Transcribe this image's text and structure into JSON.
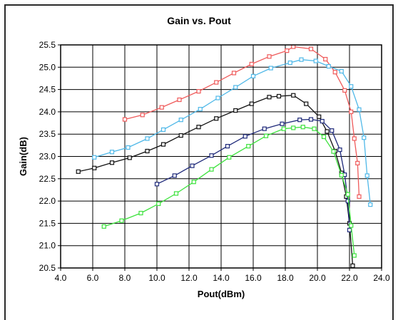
{
  "chart_data": {
    "type": "line",
    "title": "Gain vs. Pout",
    "xlabel": "Pout(dBm)",
    "ylabel": "Gain(dB)",
    "xlim": [
      4.0,
      24.0
    ],
    "ylim": [
      20.5,
      25.5
    ],
    "x_ticks": [
      "4.0",
      "6.0",
      "8.0",
      "10.0",
      "12.0",
      "14.0",
      "16.0",
      "18.0",
      "20.0",
      "22.0",
      "24.0"
    ],
    "y_ticks": [
      "20.5",
      "21.0",
      "21.5",
      "22.0",
      "22.5",
      "23.0",
      "23.5",
      "24.0",
      "24.5",
      "25.0",
      "25.5"
    ],
    "grid": true,
    "marker": "square",
    "series": [
      {
        "color": "#ef5b5b",
        "points": [
          [
            8.0,
            23.83
          ],
          [
            9.1,
            23.93
          ],
          [
            10.3,
            24.1
          ],
          [
            11.4,
            24.27
          ],
          [
            12.6,
            24.46
          ],
          [
            13.7,
            24.66
          ],
          [
            14.8,
            24.87
          ],
          [
            15.9,
            25.07
          ],
          [
            17.0,
            25.24
          ],
          [
            18.1,
            25.37
          ],
          [
            18.5,
            25.46
          ],
          [
            19.6,
            25.41
          ],
          [
            20.5,
            25.18
          ],
          [
            21.1,
            24.89
          ],
          [
            21.7,
            24.48
          ],
          [
            22.1,
            24.0
          ],
          [
            22.3,
            23.4
          ],
          [
            22.5,
            22.85
          ],
          [
            22.6,
            22.1
          ]
        ]
      },
      {
        "color": "#4fb8e8",
        "points": [
          [
            6.1,
            22.98
          ],
          [
            7.2,
            23.1
          ],
          [
            8.2,
            23.2
          ],
          [
            9.4,
            23.4
          ],
          [
            10.4,
            23.6
          ],
          [
            11.5,
            23.82
          ],
          [
            12.7,
            24.06
          ],
          [
            13.8,
            24.31
          ],
          [
            14.9,
            24.55
          ],
          [
            16.0,
            24.8
          ],
          [
            17.1,
            24.98
          ],
          [
            18.3,
            25.1
          ],
          [
            19.0,
            25.17
          ],
          [
            19.9,
            25.14
          ],
          [
            20.7,
            25.02
          ],
          [
            21.5,
            24.91
          ],
          [
            22.1,
            24.57
          ],
          [
            22.6,
            24.05
          ],
          [
            22.9,
            23.42
          ],
          [
            23.1,
            22.57
          ],
          [
            23.3,
            21.92
          ]
        ]
      },
      {
        "color": "#111111",
        "points": [
          [
            5.1,
            22.66
          ],
          [
            6.1,
            22.74
          ],
          [
            7.2,
            22.86
          ],
          [
            8.3,
            22.97
          ],
          [
            9.4,
            23.12
          ],
          [
            10.4,
            23.27
          ],
          [
            11.5,
            23.47
          ],
          [
            12.6,
            23.66
          ],
          [
            13.7,
            23.85
          ],
          [
            14.9,
            24.03
          ],
          [
            15.9,
            24.18
          ],
          [
            17.0,
            24.33
          ],
          [
            17.6,
            24.35
          ],
          [
            18.5,
            24.37
          ],
          [
            19.3,
            24.18
          ],
          [
            20.1,
            23.89
          ],
          [
            20.6,
            23.56
          ],
          [
            21.1,
            23.12
          ],
          [
            21.5,
            22.63
          ],
          [
            21.8,
            22.1
          ],
          [
            22.0,
            21.5
          ],
          [
            22.2,
            20.55
          ]
        ]
      },
      {
        "color": "#1f2a7a",
        "points": [
          [
            10.0,
            22.38
          ],
          [
            11.1,
            22.57
          ],
          [
            12.2,
            22.79
          ],
          [
            13.4,
            23.02
          ],
          [
            14.4,
            23.23
          ],
          [
            15.5,
            23.45
          ],
          [
            16.7,
            23.62
          ],
          [
            17.8,
            23.73
          ],
          [
            18.9,
            23.82
          ],
          [
            19.6,
            23.83
          ],
          [
            20.3,
            23.79
          ],
          [
            20.9,
            23.58
          ],
          [
            21.4,
            23.15
          ],
          [
            21.7,
            22.59
          ],
          [
            21.9,
            22.0
          ],
          [
            22.0,
            21.35
          ]
        ]
      },
      {
        "color": "#3ee23e",
        "points": [
          [
            6.7,
            21.43
          ],
          [
            7.8,
            21.56
          ],
          [
            9.0,
            21.73
          ],
          [
            10.1,
            21.94
          ],
          [
            11.2,
            22.17
          ],
          [
            12.3,
            22.43
          ],
          [
            13.4,
            22.71
          ],
          [
            14.5,
            22.98
          ],
          [
            15.7,
            23.23
          ],
          [
            16.8,
            23.46
          ],
          [
            17.9,
            23.62
          ],
          [
            18.5,
            23.64
          ],
          [
            19.1,
            23.66
          ],
          [
            19.8,
            23.62
          ],
          [
            20.4,
            23.44
          ],
          [
            21.0,
            23.11
          ],
          [
            21.5,
            22.58
          ],
          [
            21.9,
            22.15
          ],
          [
            22.1,
            21.45
          ],
          [
            22.3,
            20.78
          ]
        ]
      }
    ]
  }
}
